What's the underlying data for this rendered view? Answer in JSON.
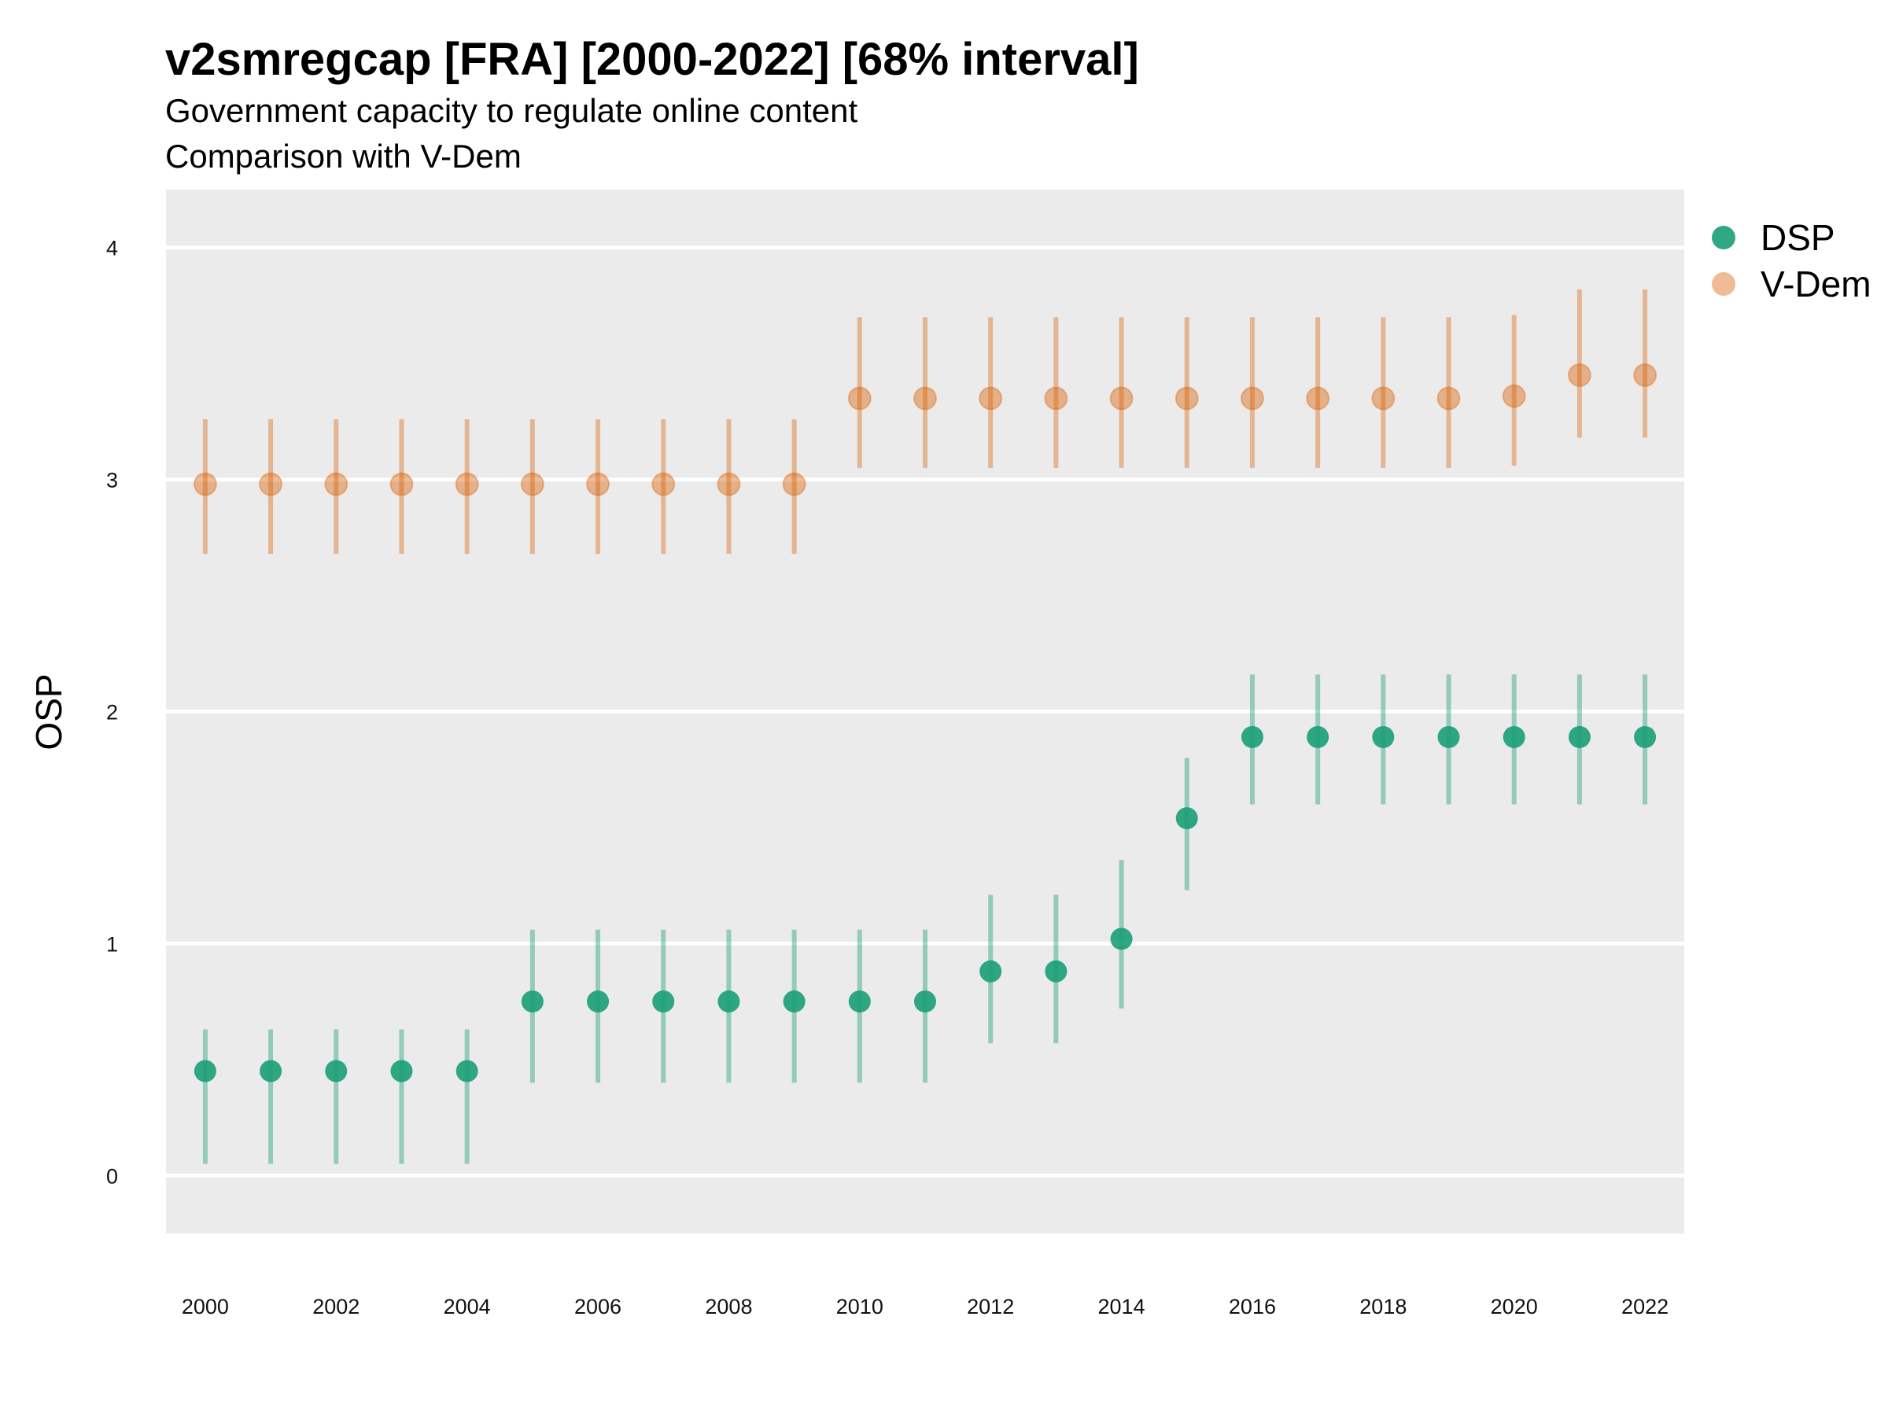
{
  "chart_data": {
    "type": "scatter",
    "title": "v2smregcap [FRA] [2000-2022] [68% interval]",
    "subtitle_line1": "Government capacity to regulate online content",
    "subtitle_line2": "Comparison with V-Dem",
    "xlabel": "",
    "ylabel": "OSP",
    "ylim": [
      -0.25,
      4.25
    ],
    "yticks": [
      0,
      1,
      2,
      3,
      4
    ],
    "xticks": [
      2000,
      2002,
      2004,
      2006,
      2008,
      2010,
      2012,
      2014,
      2016,
      2018,
      2020,
      2022
    ],
    "grid": true,
    "legend_position": "right",
    "x": [
      2000,
      2001,
      2002,
      2003,
      2004,
      2005,
      2006,
      2007,
      2008,
      2009,
      2010,
      2011,
      2012,
      2013,
      2014,
      2015,
      2016,
      2017,
      2018,
      2019,
      2020,
      2021,
      2022
    ],
    "series": [
      {
        "name": "DSP",
        "color": "#1b9e77",
        "values": [
          0.45,
          0.45,
          0.45,
          0.45,
          0.45,
          0.75,
          0.75,
          0.75,
          0.75,
          0.75,
          0.75,
          0.75,
          0.88,
          0.88,
          1.02,
          1.54,
          1.89,
          1.89,
          1.89,
          1.89,
          1.89,
          1.89,
          1.89
        ],
        "lower": [
          0.05,
          0.05,
          0.05,
          0.05,
          0.05,
          0.4,
          0.4,
          0.4,
          0.4,
          0.4,
          0.4,
          0.4,
          0.57,
          0.57,
          0.72,
          1.23,
          1.6,
          1.6,
          1.6,
          1.6,
          1.6,
          1.6,
          1.6
        ],
        "upper": [
          0.63,
          0.63,
          0.63,
          0.63,
          0.63,
          1.06,
          1.06,
          1.06,
          1.06,
          1.06,
          1.06,
          1.06,
          1.21,
          1.21,
          1.36,
          1.8,
          2.16,
          2.16,
          2.16,
          2.16,
          2.16,
          2.16,
          2.16
        ]
      },
      {
        "name": "V-Dem",
        "color": "#d95f02",
        "values": [
          2.98,
          2.98,
          2.98,
          2.98,
          2.98,
          2.98,
          2.98,
          2.98,
          2.98,
          2.98,
          3.35,
          3.35,
          3.35,
          3.35,
          3.35,
          3.35,
          3.35,
          3.35,
          3.35,
          3.35,
          3.36,
          3.45,
          3.45
        ],
        "lower": [
          2.68,
          2.68,
          2.68,
          2.68,
          2.68,
          2.68,
          2.68,
          2.68,
          2.68,
          2.68,
          3.05,
          3.05,
          3.05,
          3.05,
          3.05,
          3.05,
          3.05,
          3.05,
          3.05,
          3.05,
          3.06,
          3.18,
          3.18
        ],
        "upper": [
          3.26,
          3.26,
          3.26,
          3.26,
          3.26,
          3.26,
          3.26,
          3.26,
          3.26,
          3.26,
          3.7,
          3.7,
          3.7,
          3.7,
          3.7,
          3.7,
          3.7,
          3.7,
          3.7,
          3.7,
          3.71,
          3.82,
          3.82
        ]
      }
    ]
  }
}
